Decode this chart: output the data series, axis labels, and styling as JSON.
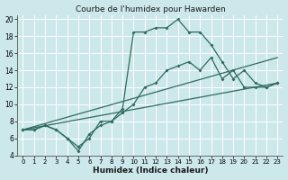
{
  "title": "Courbe de l'humidex pour Hawarden",
  "xlabel": "Humidex (Indice chaleur)",
  "bg_color": "#cce8eb",
  "grid_color": "#ffffff",
  "line_color": "#2e6b5e",
  "xlim": [
    -0.5,
    23.5
  ],
  "ylim": [
    4,
    20.5
  ],
  "xticks": [
    0,
    1,
    2,
    3,
    4,
    5,
    6,
    7,
    8,
    9,
    10,
    11,
    12,
    13,
    14,
    15,
    16,
    17,
    18,
    19,
    20,
    21,
    22,
    23
  ],
  "yticks": [
    4,
    6,
    8,
    10,
    12,
    14,
    16,
    18,
    20
  ],
  "line1_x": [
    0,
    1,
    2,
    3,
    4,
    5,
    6,
    7,
    8,
    9,
    10,
    11,
    12,
    13,
    14,
    15,
    16,
    17,
    18,
    19,
    20,
    21,
    22,
    23
  ],
  "line1_y": [
    7,
    7,
    7.5,
    7,
    6,
    5,
    6,
    8,
    8,
    9,
    10,
    12,
    12.5,
    14,
    14.5,
    15,
    14,
    15.5,
    13,
    14,
    12,
    12,
    12,
    12.5
  ],
  "line2_x": [
    0,
    1,
    2,
    3,
    4,
    5,
    6,
    7,
    8,
    9,
    10,
    11,
    12,
    13,
    14,
    15,
    16,
    17,
    18,
    19,
    20,
    21,
    22,
    23
  ],
  "line2_y": [
    7,
    7,
    7.5,
    7,
    6,
    4.5,
    6.5,
    7.5,
    8,
    9.5,
    18.5,
    18.5,
    19,
    19,
    20,
    18.5,
    18.5,
    17,
    15,
    13,
    14,
    12.5,
    12,
    12.5
  ],
  "line3_x": [
    0,
    23
  ],
  "line3_y": [
    7,
    12.5
  ],
  "line4_x": [
    0,
    23
  ],
  "line4_y": [
    7,
    15.5
  ]
}
